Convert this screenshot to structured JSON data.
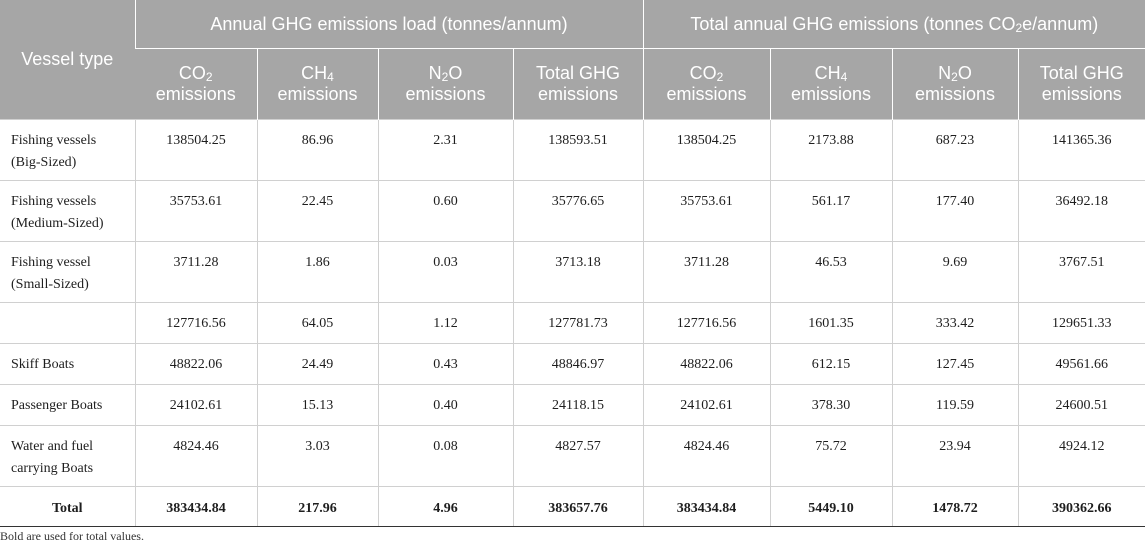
{
  "header": {
    "vessel_type": "Vessel type",
    "group1": "Annual GHG emissions load (tonnes/annum)",
    "group2_prefix": "Total annual GHG emissions (tonnes CO",
    "group2_sub": "2",
    "group2_suffix": "e/annum)",
    "co2_main": "CO",
    "co2_sub": "2",
    "ch4_main": "CH",
    "ch4_sub": "4",
    "n2o_main": "N",
    "n2o_sub": "2",
    "n2o_tail": "O",
    "emissions": "emissions",
    "total_ghg_line1": "Total GHG",
    "total_ghg_line2": "emissions"
  },
  "rows": [
    {
      "label1": "Fishing vessels",
      "label2": "(Big-Sized)",
      "values": [
        "138504.25",
        "86.96",
        "2.31",
        "138593.51",
        "138504.25",
        "2173.88",
        "687.23",
        "141365.36"
      ]
    },
    {
      "label1": "Fishing vessels",
      "label2": "(Medium-Sized)",
      "values": [
        "35753.61",
        "22.45",
        "0.60",
        "35776.65",
        "35753.61",
        "561.17",
        "177.40",
        "36492.18"
      ]
    },
    {
      "label1": "Fishing vessel",
      "label2": "(Small-Sized)",
      "values": [
        "3711.28",
        "1.86",
        "0.03",
        "3713.18",
        "3711.28",
        "46.53",
        "9.69",
        "3767.51"
      ]
    },
    {
      "label1": "",
      "label2": "",
      "values": [
        "127716.56",
        "64.05",
        "1.12",
        "127781.73",
        "127716.56",
        "1601.35",
        "333.42",
        "129651.33"
      ]
    },
    {
      "label1": "Skiff Boats",
      "label2": "",
      "values": [
        "48822.06",
        "24.49",
        "0.43",
        "48846.97",
        "48822.06",
        "612.15",
        "127.45",
        "49561.66"
      ]
    },
    {
      "label1": "Passenger Boats",
      "label2": "",
      "values": [
        "24102.61",
        "15.13",
        "0.40",
        "24118.15",
        "24102.61",
        "378.30",
        "119.59",
        "24600.51"
      ]
    },
    {
      "label1": "Water and fuel",
      "label2": "carrying Boats",
      "values": [
        "4824.46",
        "3.03",
        "0.08",
        "4827.57",
        "4824.46",
        "75.72",
        "23.94",
        "4924.12"
      ]
    }
  ],
  "total": {
    "label": "Total",
    "values": [
      "383434.84",
      "217.96",
      "4.96",
      "383657.76",
      "383434.84",
      "5449.10",
      "1478.72",
      "390362.66"
    ]
  },
  "footnote": "Bold are used for total values."
}
